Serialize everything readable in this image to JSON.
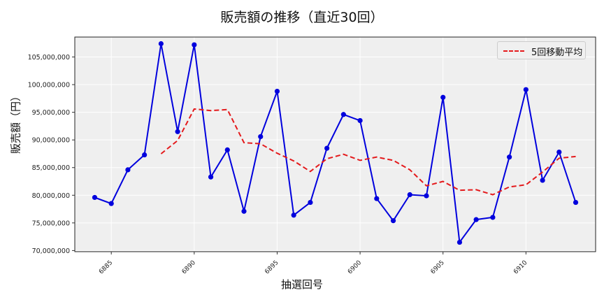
{
  "chart_data": {
    "type": "line",
    "title": "販売額の推移（直近30回）",
    "xlabel": "抽選回号",
    "ylabel": "販売額（円）",
    "x": [
      6884,
      6885,
      6886,
      6887,
      6888,
      6889,
      6890,
      6891,
      6892,
      6893,
      6894,
      6895,
      6896,
      6897,
      6898,
      6899,
      6900,
      6901,
      6902,
      6903,
      6904,
      6905,
      6906,
      6907,
      6908,
      6909,
      6910,
      6911,
      6912,
      6913
    ],
    "series": [
      {
        "name": "販売額",
        "color": "#0000dd",
        "style": "solid-markers",
        "values": [
          79600000,
          78500000,
          84600000,
          87300000,
          107400000,
          91500000,
          107200000,
          83300000,
          88200000,
          77100000,
          90600000,
          98800000,
          76400000,
          78700000,
          88500000,
          94600000,
          93500000,
          79400000,
          75400000,
          80100000,
          79900000,
          97700000,
          71500000,
          75600000,
          76000000,
          86900000,
          99100000,
          82700000,
          87800000,
          78700000
        ]
      },
      {
        "name": "5回移動平均",
        "color": "#e41a1c",
        "style": "dashed",
        "values": [
          null,
          null,
          null,
          null,
          87500000,
          89900000,
          95600000,
          95300000,
          95500000,
          89500000,
          89300000,
          87600000,
          86200000,
          84300000,
          86600000,
          87400000,
          86300000,
          86900000,
          86300000,
          84600000,
          81700000,
          82500000,
          80900000,
          81000000,
          80100000,
          81500000,
          81900000,
          84200000,
          86700000,
          87000000
        ]
      }
    ],
    "xticks": [
      6885,
      6890,
      6895,
      6900,
      6905,
      6910
    ],
    "yticks": [
      70000000,
      75000000,
      80000000,
      85000000,
      90000000,
      95000000,
      100000000,
      105000000
    ],
    "ytick_labels": [
      "70,000,000",
      "75,000,000",
      "80,000,000",
      "85,000,000",
      "90,000,000",
      "95,000,000",
      "100,000,000",
      "105,000,000"
    ],
    "ylim": [
      69800000,
      108600000
    ],
    "xlim": [
      6882.8,
      6914.2
    ],
    "grid": true,
    "legend": {
      "position": "upper right",
      "entries": [
        "5回移動平均"
      ]
    },
    "background": "#efefef"
  },
  "page": {
    "title": "販売額の推移（直近30回）",
    "xlabel": "抽選回号",
    "ylabel": "販売額（円）",
    "legend_label": "5回移動平均"
  }
}
